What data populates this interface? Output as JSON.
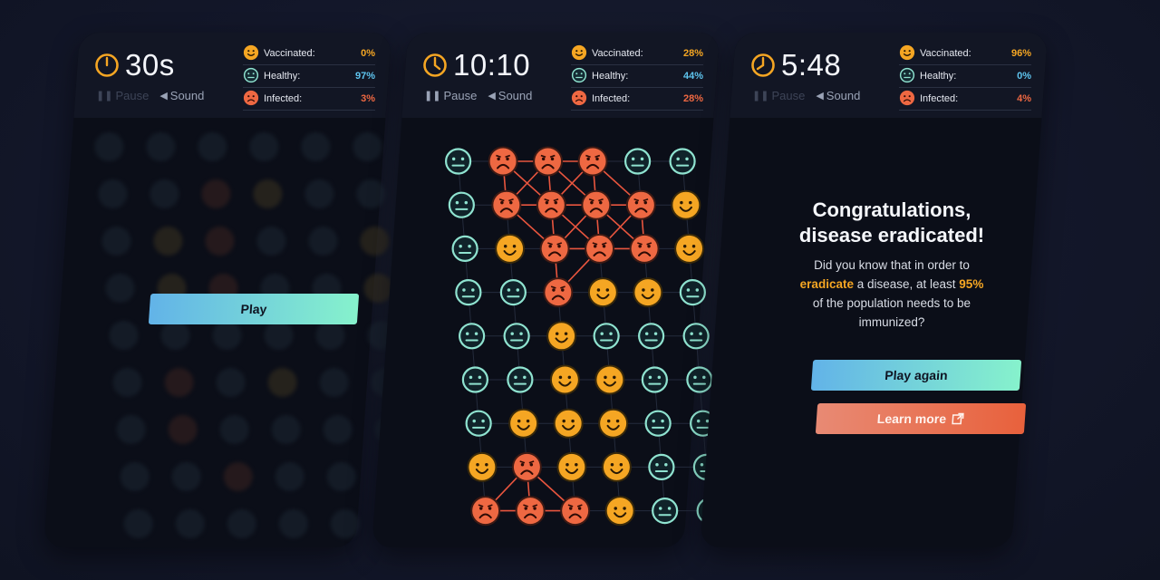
{
  "colors": {
    "vaccinated": "#f5a623",
    "healthy": "#8fe3d0",
    "infected": "#ee6842",
    "healthy_value": "#5ec4ee",
    "accent_gradient": [
      "#62b3e8",
      "#86f2cc"
    ]
  },
  "icons": {
    "timer": "clock-icon",
    "pause": "pause-icon",
    "sound": "speaker-icon",
    "external": "external-link-icon"
  },
  "screens": [
    {
      "timer": "30s",
      "pause_label": "Pause",
      "sound_label": "Sound",
      "stats": [
        {
          "label": "Vaccinated:",
          "value": "0%"
        },
        {
          "label": "Healthy:",
          "value": "97%"
        },
        {
          "label": "Infected:",
          "value": "3%"
        }
      ],
      "play_label": "Play"
    },
    {
      "timer": "10:10",
      "pause_label": "Pause",
      "sound_label": "Sound",
      "stats": [
        {
          "label": "Vaccinated:",
          "value": "28%"
        },
        {
          "label": "Healthy:",
          "value": "44%"
        },
        {
          "label": "Infected:",
          "value": "28%"
        }
      ],
      "grid": [
        "HIIIHH",
        "HIIIIV",
        "HVIIIV",
        "HHIVVH",
        "HHVHHH",
        "HHVVHH",
        "HVVVHH",
        "VIVVHH",
        "IIIVHH"
      ]
    },
    {
      "timer": "5:48",
      "pause_label": "Pause",
      "sound_label": "Sound",
      "stats": [
        {
          "label": "Vaccinated:",
          "value": "96%"
        },
        {
          "label": "Healthy:",
          "value": "0%"
        },
        {
          "label": "Infected:",
          "value": "4%"
        }
      ],
      "title_line1": "Congratulations,",
      "title_line2": "disease eradicated!",
      "body_line1": "Did you know that in order to",
      "body_hl1": "eradicate",
      "body_line2_rest": " a disease, at least ",
      "body_hl2": "95%",
      "body_line3": "of the population needs to be",
      "body_line4": "immunized?",
      "play_again_label": "Play again",
      "learn_more_label": "Learn more"
    }
  ]
}
